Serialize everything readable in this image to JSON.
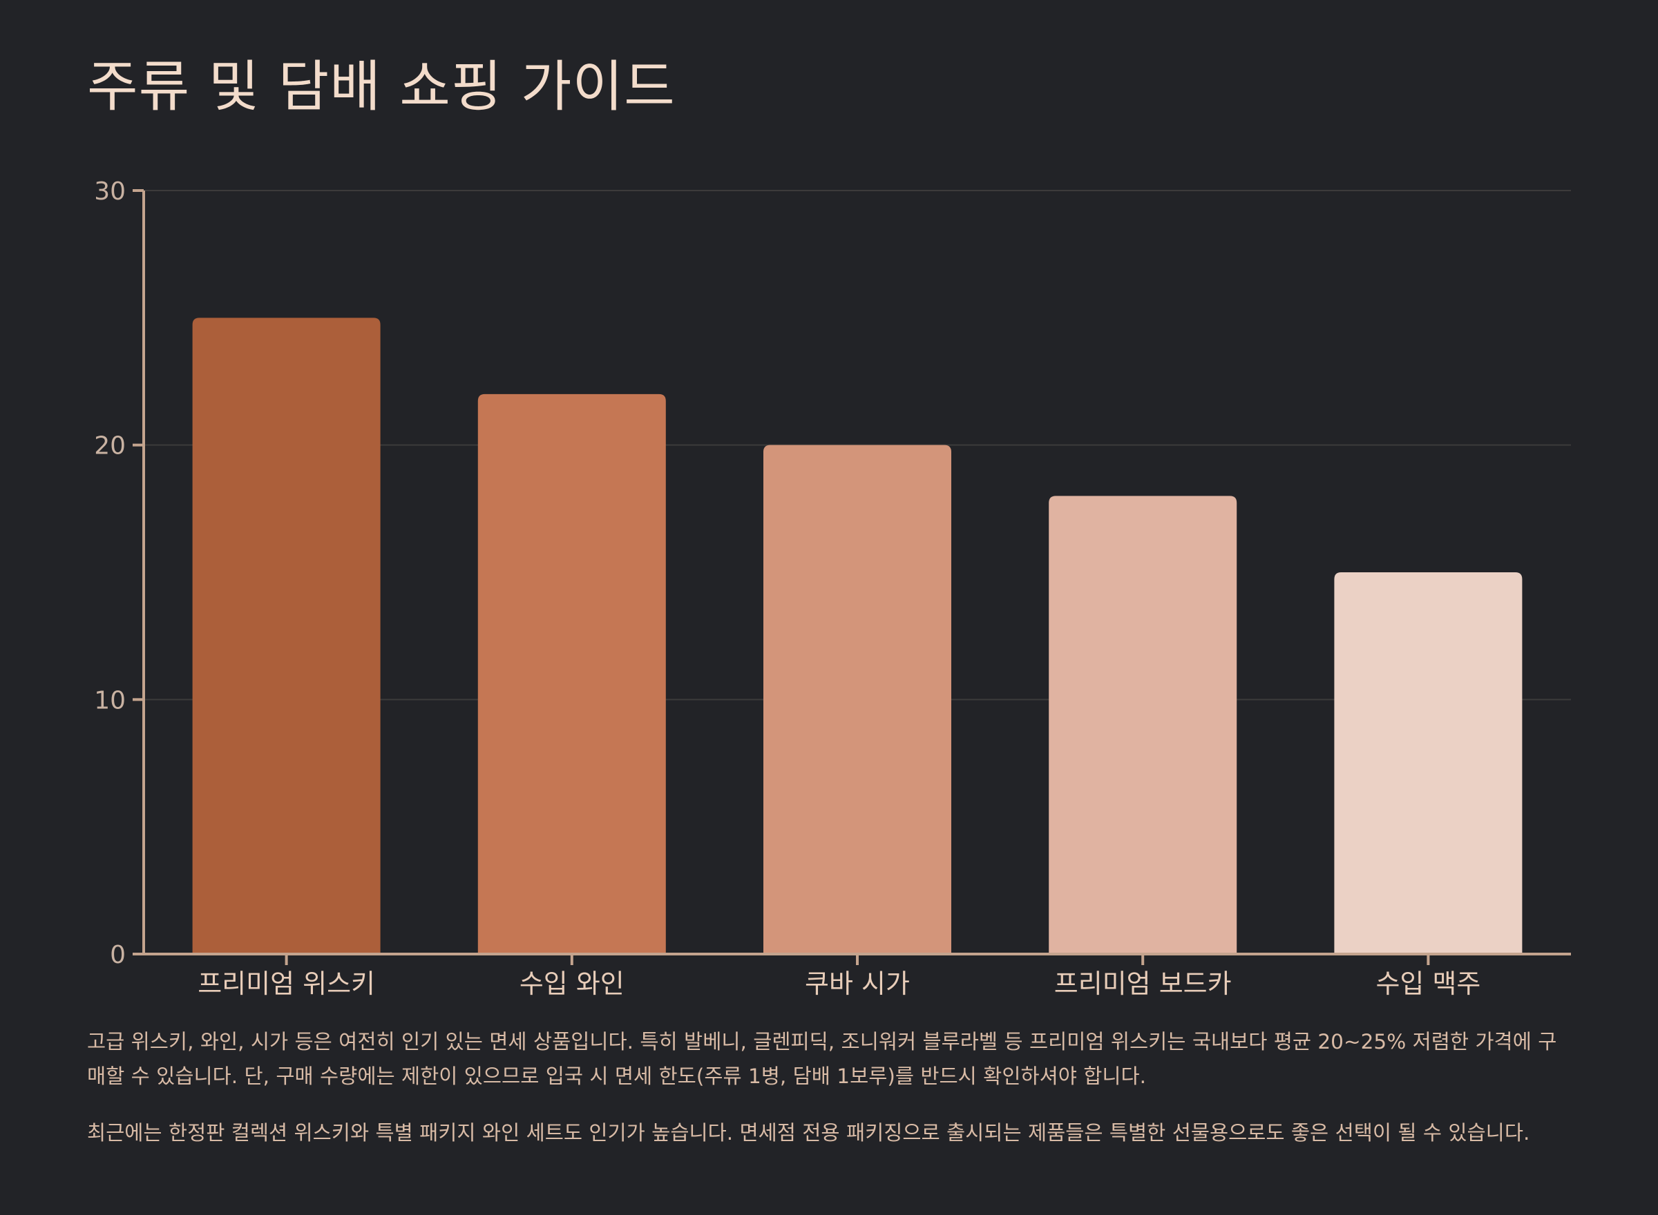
{
  "title": "주류 및 담배 쇼핑 가이드",
  "colors": {
    "background": "#222327",
    "title": "#f3dccb",
    "axis": "#c4a48e",
    "grid": "#3c3b3b",
    "tick_text": "#c9b2a2",
    "category_text": "#e8cdb9",
    "body_text": "#d9bba6"
  },
  "chart_data": {
    "type": "bar",
    "categories": [
      "프리미엄 위스키",
      "수입 와인",
      "쿠바 시가",
      "프리미엄 보드카",
      "수입 맥주"
    ],
    "values": [
      25,
      22,
      20,
      18,
      15
    ],
    "bar_colors": [
      "#ac5f3a",
      "#c57754",
      "#d3957a",
      "#e0b3a1",
      "#ebd1c5"
    ],
    "ylim": [
      0,
      30
    ],
    "yticks": [
      0,
      10,
      20,
      30
    ],
    "grid": true,
    "legend": "none"
  },
  "description": {
    "paragraphs": [
      "고급 위스키, 와인, 시가 등은 여전히 인기 있는 면세 상품입니다. 특히 발베니, 글렌피딕, 조니워커 블루라벨 등 프리미엄 위스키는 국내보다 평균 20~25% 저렴한 가격에 구매할 수 있습니다. 단, 구매 수량에는 제한이 있으므로 입국 시 면세 한도(주류 1병, 담배 1보루)를 반드시 확인하셔야 합니다.",
      "최근에는 한정판 컬렉션 위스키와 특별 패키지 와인 세트도 인기가 높습니다. 면세점 전용 패키징으로 출시되는 제품들은 특별한 선물용으로도 좋은 선택이 될 수 있습니다."
    ]
  }
}
